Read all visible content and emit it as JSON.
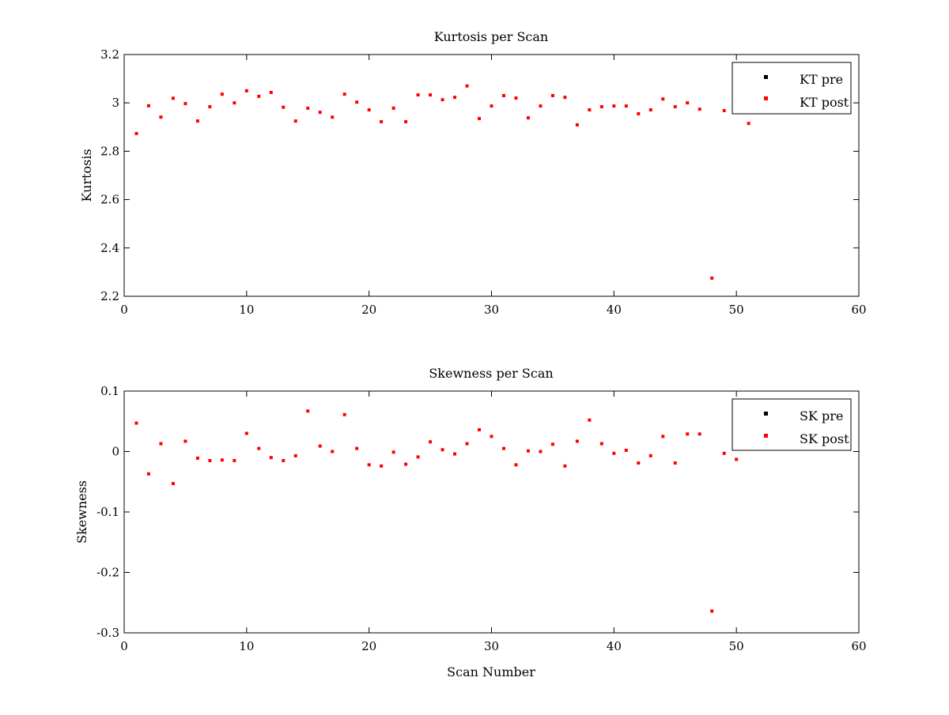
{
  "chart_data": [
    {
      "type": "scatter",
      "title": "Kurtosis per Scan",
      "xlabel": "",
      "ylabel": "Kurtosis",
      "xlim": [
        0,
        60
      ],
      "ylim": [
        2.2,
        3.2
      ],
      "xticks": [
        "0",
        "10",
        "20",
        "30",
        "40",
        "50",
        "60"
      ],
      "yticks": [
        "2.2",
        "2.4",
        "2.6",
        "2.8",
        "3",
        "3.2"
      ],
      "grid": false,
      "legend_position": "top-right",
      "series": [
        {
          "name": "KT pre",
          "color": "#000000",
          "x": [],
          "y": []
        },
        {
          "name": "KT post",
          "color": "#ff0000",
          "x": [
            1,
            2,
            3,
            4,
            5,
            6,
            7,
            8,
            9,
            10,
            11,
            12,
            13,
            14,
            15,
            16,
            17,
            18,
            19,
            20,
            21,
            22,
            23,
            24,
            25,
            26,
            27,
            28,
            29,
            30,
            31,
            32,
            33,
            34,
            35,
            36,
            37,
            38,
            39,
            40,
            41,
            42,
            43,
            44,
            45,
            46,
            47,
            48,
            49,
            51
          ],
          "y": [
            2.873,
            2.988,
            2.941,
            3.019,
            2.997,
            2.925,
            2.984,
            3.036,
            3.0,
            3.05,
            3.027,
            3.043,
            2.982,
            2.925,
            2.978,
            2.961,
            2.941,
            3.036,
            3.003,
            2.971,
            2.922,
            2.978,
            2.922,
            3.033,
            3.033,
            3.013,
            3.023,
            3.07,
            2.935,
            2.987,
            3.03,
            3.02,
            2.938,
            2.987,
            3.03,
            3.023,
            2.909,
            2.971,
            2.984,
            2.987,
            2.987,
            2.955,
            2.971,
            3.016,
            2.984,
            3.0,
            2.974,
            2.275,
            2.968,
            2.915
          ]
        }
      ]
    },
    {
      "type": "scatter",
      "title": "Skewness per Scan",
      "xlabel": "Scan Number",
      "ylabel": "Skewness",
      "xlim": [
        0,
        60
      ],
      "ylim": [
        -0.3,
        0.1
      ],
      "xticks": [
        "0",
        "10",
        "20",
        "30",
        "40",
        "50",
        "60"
      ],
      "yticks": [
        "-0.3",
        "-0.2",
        "-0.1",
        "0",
        "0.1"
      ],
      "grid": false,
      "legend_position": "top-right",
      "series": [
        {
          "name": "SK pre",
          "color": "#000000",
          "x": [],
          "y": []
        },
        {
          "name": "SK post",
          "color": "#ff0000",
          "x": [
            1,
            2,
            3,
            4,
            5,
            6,
            7,
            8,
            9,
            10,
            11,
            12,
            13,
            14,
            15,
            16,
            17,
            18,
            19,
            20,
            21,
            22,
            23,
            24,
            25,
            26,
            27,
            28,
            29,
            30,
            31,
            32,
            33,
            34,
            35,
            36,
            37,
            38,
            39,
            40,
            41,
            42,
            43,
            44,
            45,
            46,
            47,
            48,
            49,
            50
          ],
          "y": [
            0.047,
            -0.037,
            0.013,
            -0.053,
            0.017,
            -0.011,
            -0.015,
            -0.014,
            -0.015,
            0.03,
            0.005,
            -0.01,
            -0.015,
            -0.007,
            0.067,
            0.009,
            0.0,
            0.061,
            0.005,
            -0.022,
            -0.024,
            -0.001,
            -0.021,
            -0.009,
            0.016,
            0.003,
            -0.004,
            0.013,
            0.036,
            0.025,
            0.005,
            -0.022,
            0.001,
            0.0,
            0.012,
            -0.024,
            0.017,
            0.052,
            0.013,
            -0.003,
            0.002,
            -0.019,
            -0.007,
            0.025,
            -0.019,
            0.029,
            0.029,
            -0.264,
            -0.003,
            -0.013
          ]
        }
      ]
    }
  ]
}
